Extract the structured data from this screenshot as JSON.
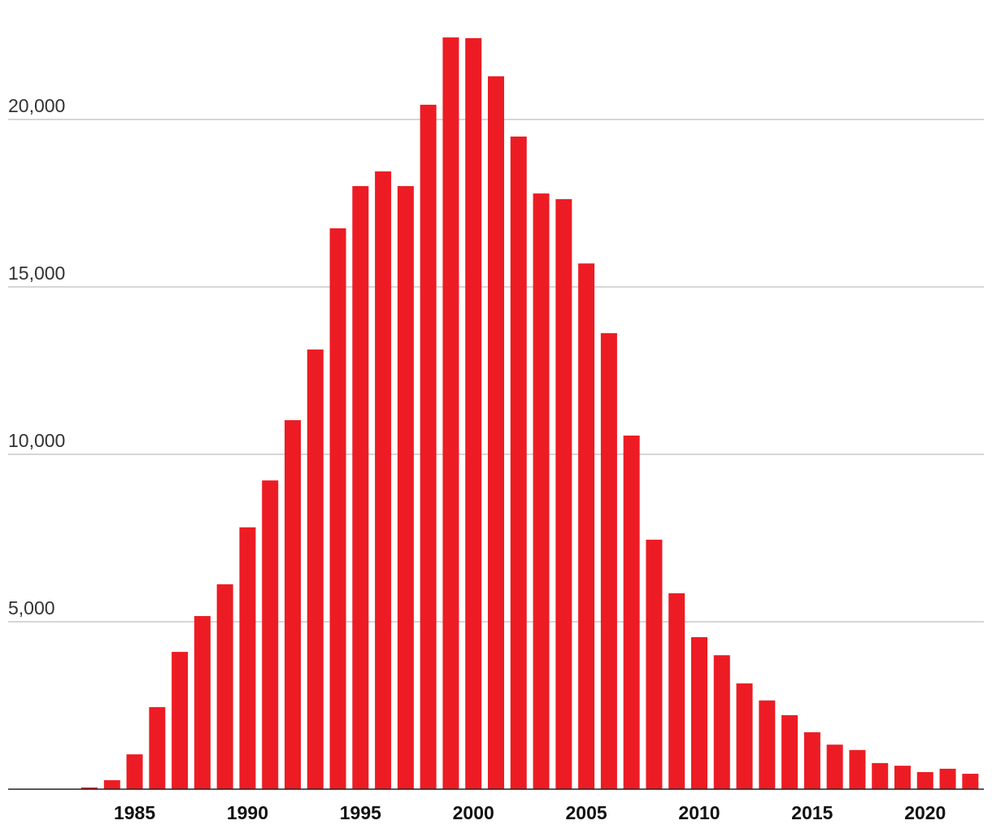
{
  "chart_data": {
    "type": "bar",
    "color": "#ed1c24",
    "grid": true,
    "x": [
      1983,
      1984,
      1985,
      1986,
      1987,
      1988,
      1989,
      1990,
      1991,
      1992,
      1993,
      1994,
      1995,
      1996,
      1997,
      1998,
      1999,
      2000,
      2001,
      2002,
      2003,
      2004,
      2005,
      2006,
      2007,
      2008,
      2009,
      2010,
      2011,
      2012,
      2013,
      2014,
      2015,
      2016,
      2017,
      2018,
      2019,
      2020,
      2021,
      2022
    ],
    "values": [
      50,
      270,
      1040,
      2450,
      4100,
      5170,
      6120,
      7820,
      9220,
      11020,
      13130,
      16750,
      18010,
      18450,
      18010,
      20440,
      22450,
      22430,
      21290,
      19490,
      17790,
      17620,
      15700,
      13620,
      10560,
      7450,
      5850,
      4540,
      4000,
      3160,
      2650,
      2210,
      1700,
      1330,
      1170,
      780,
      700,
      510,
      610,
      460
    ],
    "xlim": [
      1979.4,
      2022.6
    ],
    "xticks": [
      1985,
      1990,
      1995,
      2000,
      2005,
      2010,
      2015,
      2020
    ],
    "ylim": [
      0,
      22500
    ],
    "yticks": [
      {
        "value": 5000,
        "label": "5,000"
      },
      {
        "value": 10000,
        "label": "10,000"
      },
      {
        "value": 15000,
        "label": "15,000"
      },
      {
        "value": 20000,
        "label": "20,000"
      }
    ]
  }
}
